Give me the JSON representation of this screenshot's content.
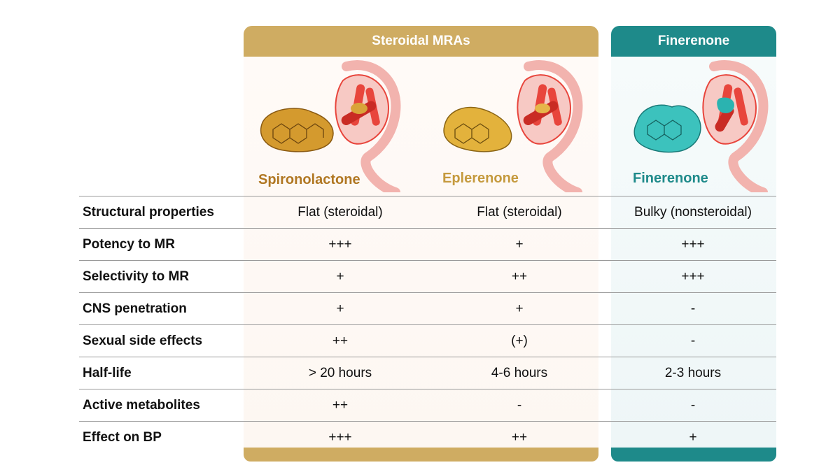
{
  "groups": {
    "steroidal": "Steroidal MRAs",
    "nonsteroidal": "Finerenone"
  },
  "drugs": [
    "Spironolactone",
    "Eplerenone",
    "Finerenone"
  ],
  "colors": {
    "steroidal_accent": "#cfac62",
    "finerenone_accent": "#1e8a8a",
    "spironolactone_text": "#b07722",
    "eplerenone_text": "#c59a3e",
    "receptor_red": "#e8453c"
  },
  "rows": [
    {
      "label": "Structural properties",
      "values": [
        "Flat (steroidal)",
        "Flat (steroidal)",
        "Bulky (nonsteroidal)"
      ]
    },
    {
      "label": "Potency to MR",
      "values": [
        "+++",
        "+",
        "+++"
      ]
    },
    {
      "label": "Selectivity to MR",
      "values": [
        "+",
        "++",
        "+++"
      ]
    },
    {
      "label": "CNS penetration",
      "values": [
        "+",
        "+",
        "-"
      ]
    },
    {
      "label": "Sexual side effects",
      "values": [
        "++",
        "(+)",
        "-"
      ]
    },
    {
      "label": "Half-life",
      "values": [
        "> 20 hours",
        "4-6 hours",
        "2-3 hours"
      ]
    },
    {
      "label": "Active metabolites",
      "values": [
        "++",
        "-",
        "-"
      ]
    },
    {
      "label": "Effect on BP",
      "values": [
        "+++",
        "++",
        "+"
      ]
    }
  ]
}
